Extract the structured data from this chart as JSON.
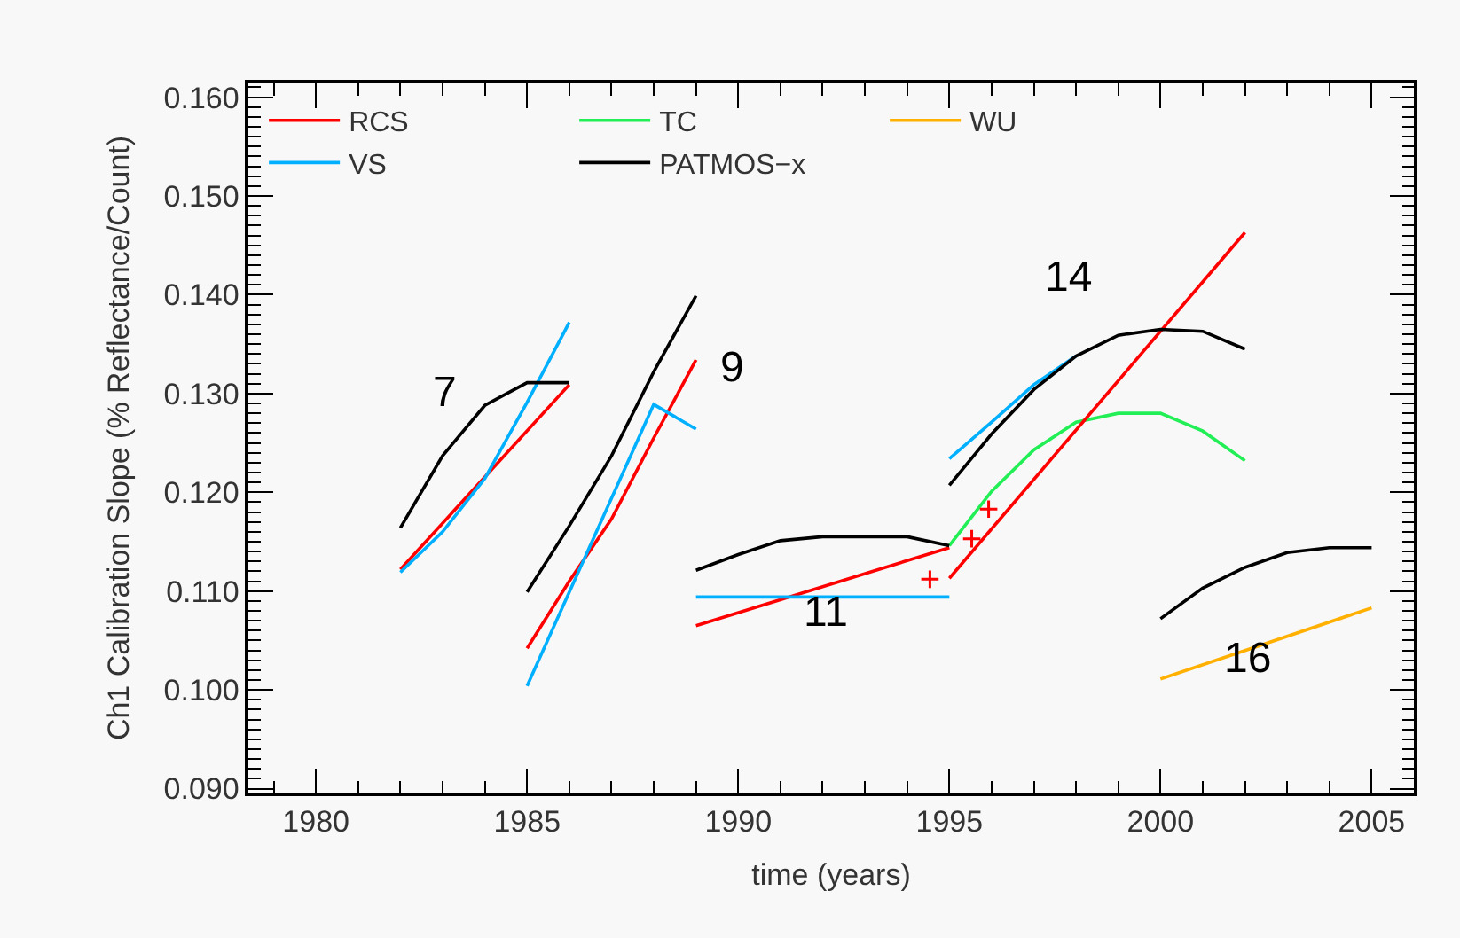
{
  "chart_data": {
    "type": "line",
    "xlabel": "time (years)",
    "ylabel": "Ch1 Calibration Slope (% Reflectance/Count)",
    "xlim": [
      1978.4,
      2006.0
    ],
    "xticks": [
      1980,
      1985,
      1990,
      1995,
      2000,
      2005
    ],
    "ylim": [
      0.0896,
      0.1614
    ],
    "yticks": [
      {
        "value": 0.09,
        "label": "0.090"
      },
      {
        "value": 0.1,
        "label": "0.100"
      },
      {
        "value": 0.11,
        "label": "0.110"
      },
      {
        "value": 0.12,
        "label": "0.120"
      },
      {
        "value": 0.13,
        "label": "0.130"
      },
      {
        "value": 0.14,
        "label": "0.140"
      },
      {
        "value": 0.15,
        "label": "0.150"
      },
      {
        "value": 0.16,
        "label": "0.160"
      }
    ],
    "grid": false,
    "legend": "top left",
    "marker": "none",
    "line_style": "solid",
    "series": [
      {
        "name": "RCS",
        "color": "#ff0000",
        "x": [
          1982,
          1986
        ],
        "values": [
          0.1122,
          0.1309
        ]
      },
      {
        "name": "TC",
        "color": "#22ee55",
        "x": [
          1995,
          1996,
          1997,
          1998,
          1999,
          2000,
          2001,
          2002
        ],
        "values": [
          0.1146,
          0.1201,
          0.1243,
          0.1271,
          0.128,
          0.128,
          0.1262,
          0.1232
        ]
      },
      {
        "name": "WU",
        "color": "#ffb000",
        "x": [
          2000,
          2005
        ],
        "values": [
          0.1011,
          0.1083
        ]
      },
      {
        "name": "VS",
        "color": "#00b0ff",
        "x": [
          1982,
          1983,
          1984,
          1985,
          1986
        ],
        "values": [
          0.1119,
          0.116,
          0.1214,
          0.1291,
          0.1372
        ]
      },
      {
        "name": "PATMOS−x",
        "color": "#000000",
        "x": [
          1982,
          1983,
          1984,
          1985,
          1986
        ],
        "values": [
          0.1164,
          0.1237,
          0.1288,
          0.1311,
          0.1311
        ]
      },
      {
        "color": "#ff0000",
        "x": [
          1985,
          1986,
          1987,
          1988,
          1989
        ],
        "values": [
          0.1042,
          0.111,
          0.1173,
          0.1255,
          0.1334
        ]
      },
      {
        "color": "#ff0000",
        "x": [
          1989,
          1995
        ],
        "values": [
          0.1065,
          0.1144
        ]
      },
      {
        "color": "#ff0000",
        "x": [
          1995,
          2002
        ],
        "values": [
          0.1113,
          0.1463
        ]
      },
      {
        "color": "#00b0ff",
        "x": [
          1985,
          1988,
          1989
        ],
        "values": [
          0.1004,
          0.1289,
          0.1264
        ]
      },
      {
        "color": "#00b0ff",
        "x": [
          1989,
          1995
        ],
        "values": [
          0.1094,
          0.1094
        ]
      },
      {
        "color": "#00b0ff",
        "x": [
          1995,
          1996,
          1997,
          1998
        ],
        "values": [
          0.1234,
          0.1271,
          0.1309,
          0.1338
        ]
      },
      {
        "color": "#000000",
        "x": [
          1985,
          1986,
          1987,
          1988,
          1989
        ],
        "values": [
          0.1099,
          0.1166,
          0.1237,
          0.1322,
          0.1399
        ]
      },
      {
        "color": "#000000",
        "x": [
          1989,
          1990,
          1991,
          1992,
          1993,
          1994,
          1995
        ],
        "values": [
          0.1121,
          0.1137,
          0.1151,
          0.1155,
          0.1155,
          0.1155,
          0.1146
        ]
      },
      {
        "color": "#000000",
        "x": [
          1995,
          1996,
          1997,
          1998,
          1999,
          2000,
          2001,
          2002
        ],
        "values": [
          0.1207,
          0.1259,
          0.1304,
          0.1338,
          0.1359,
          0.1365,
          0.1363,
          0.1345
        ]
      },
      {
        "color": "#000000",
        "x": [
          2000,
          2001,
          2002,
          2003,
          2004,
          2005
        ],
        "values": [
          0.1072,
          0.1103,
          0.1124,
          0.1139,
          0.1144,
          0.1144
        ]
      },
      {
        "type": "scatter",
        "marker": "cross",
        "color": "#ff0000",
        "x": [
          1994.54,
          1995.53,
          1995.93
        ],
        "values": [
          0.1112,
          0.1153,
          0.1183
        ]
      }
    ],
    "annotations": [
      "7",
      "9",
      "11",
      "14",
      "16"
    ]
  }
}
